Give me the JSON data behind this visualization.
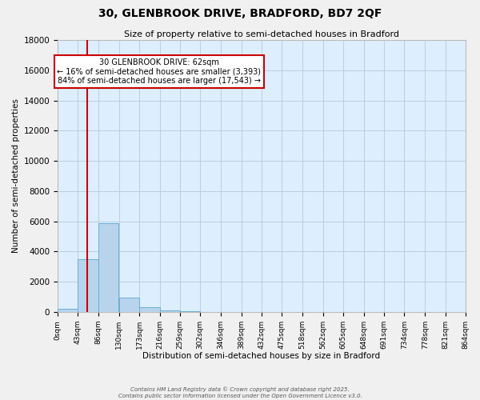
{
  "title": "30, GLENBROOK DRIVE, BRADFORD, BD7 2QF",
  "subtitle": "Size of property relative to semi-detached houses in Bradford",
  "xlabel": "Distribution of semi-detached houses by size in Bradford",
  "ylabel": "Number of semi-detached properties",
  "bar_color": "#b8d4ec",
  "bar_edge_color": "#6aaed6",
  "background_color": "#ddeeff",
  "grid_color": "#b8cfe0",
  "fig_background": "#f0f0f0",
  "bin_edges": [
    0,
    43,
    86,
    130,
    173,
    216,
    259,
    302,
    346,
    389,
    432,
    475,
    518,
    562,
    605,
    648,
    691,
    734,
    778,
    821,
    864
  ],
  "bar_heights": [
    200,
    3500,
    5900,
    950,
    300,
    100,
    50,
    0,
    0,
    0,
    0,
    0,
    0,
    0,
    0,
    0,
    0,
    0,
    0,
    0
  ],
  "ylim": [
    0,
    18000
  ],
  "yticks": [
    0,
    2000,
    4000,
    6000,
    8000,
    10000,
    12000,
    14000,
    16000,
    18000
  ],
  "property_size": 62,
  "property_label": "30 GLENBROOK DRIVE: 62sqm",
  "pct_smaller": 16,
  "pct_larger": 84,
  "n_smaller": 3393,
  "n_larger": 17543,
  "annotation_box_color": "#ffffff",
  "annotation_box_edge": "#cc0000",
  "red_line_color": "#cc0000",
  "footer_line1": "Contains HM Land Registry data © Crown copyright and database right 2025.",
  "footer_line2": "Contains public sector information licensed under the Open Government Licence v3.0."
}
